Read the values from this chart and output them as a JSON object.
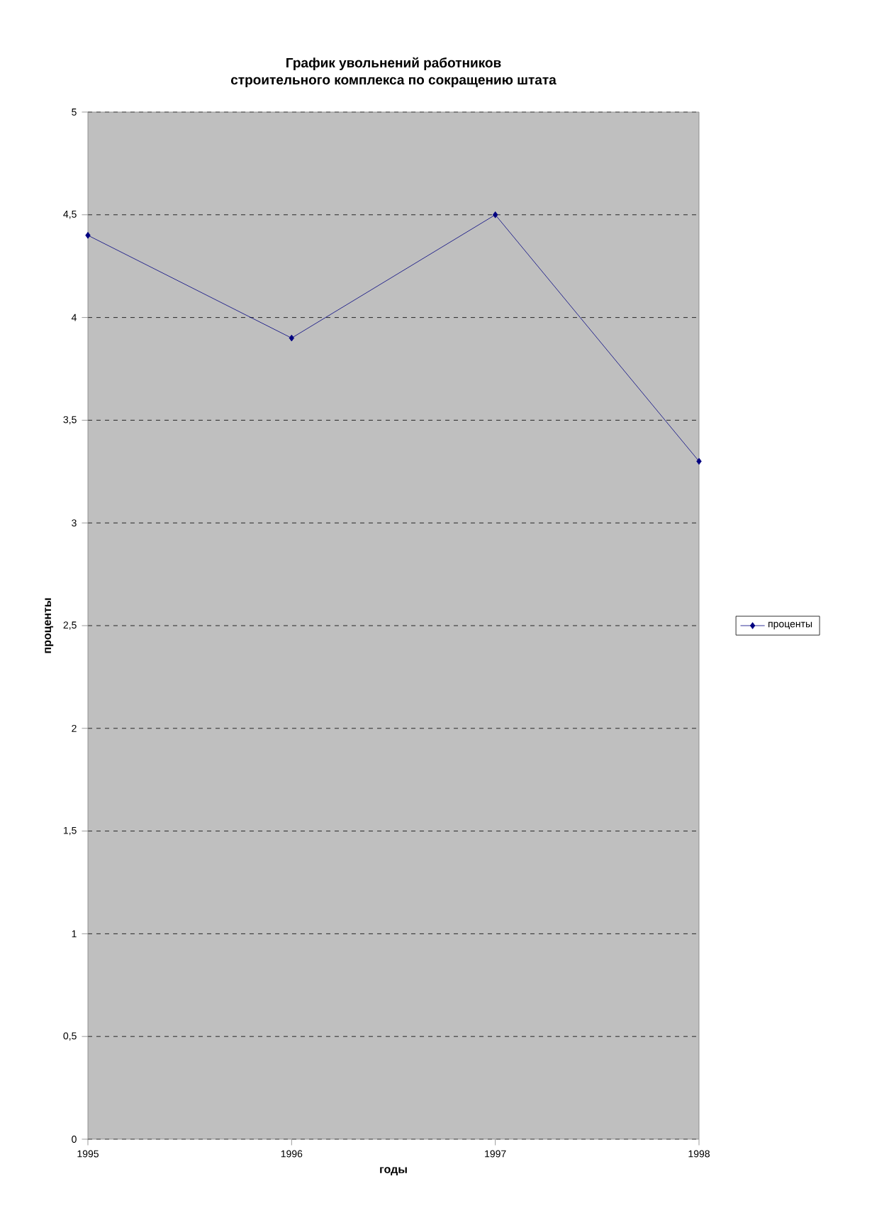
{
  "chart_data": {
    "type": "line",
    "title": "График увольнений работников\nстроительного комплекса по сокращению штата",
    "xlabel": "годы",
    "ylabel": "проценты",
    "categories": [
      "1995",
      "1996",
      "1997",
      "1998"
    ],
    "series": [
      {
        "name": "проценты",
        "color": "#000080",
        "values": [
          4.4,
          3.9,
          4.5,
          3.3
        ]
      }
    ],
    "ylim": [
      0,
      5
    ],
    "yticks": [
      0,
      {
        "value": 0.5,
        "label": "0,5"
      },
      1,
      {
        "value": 1.5,
        "label": "1,5"
      },
      2,
      {
        "value": 2.5,
        "label": "2,5"
      },
      3,
      {
        "value": 3.5,
        "label": "3,5"
      },
      4,
      {
        "value": 4.5,
        "label": "4,5"
      },
      5
    ],
    "grid": "y",
    "legend": "right",
    "marker": "diamond",
    "line_style": "solid"
  }
}
